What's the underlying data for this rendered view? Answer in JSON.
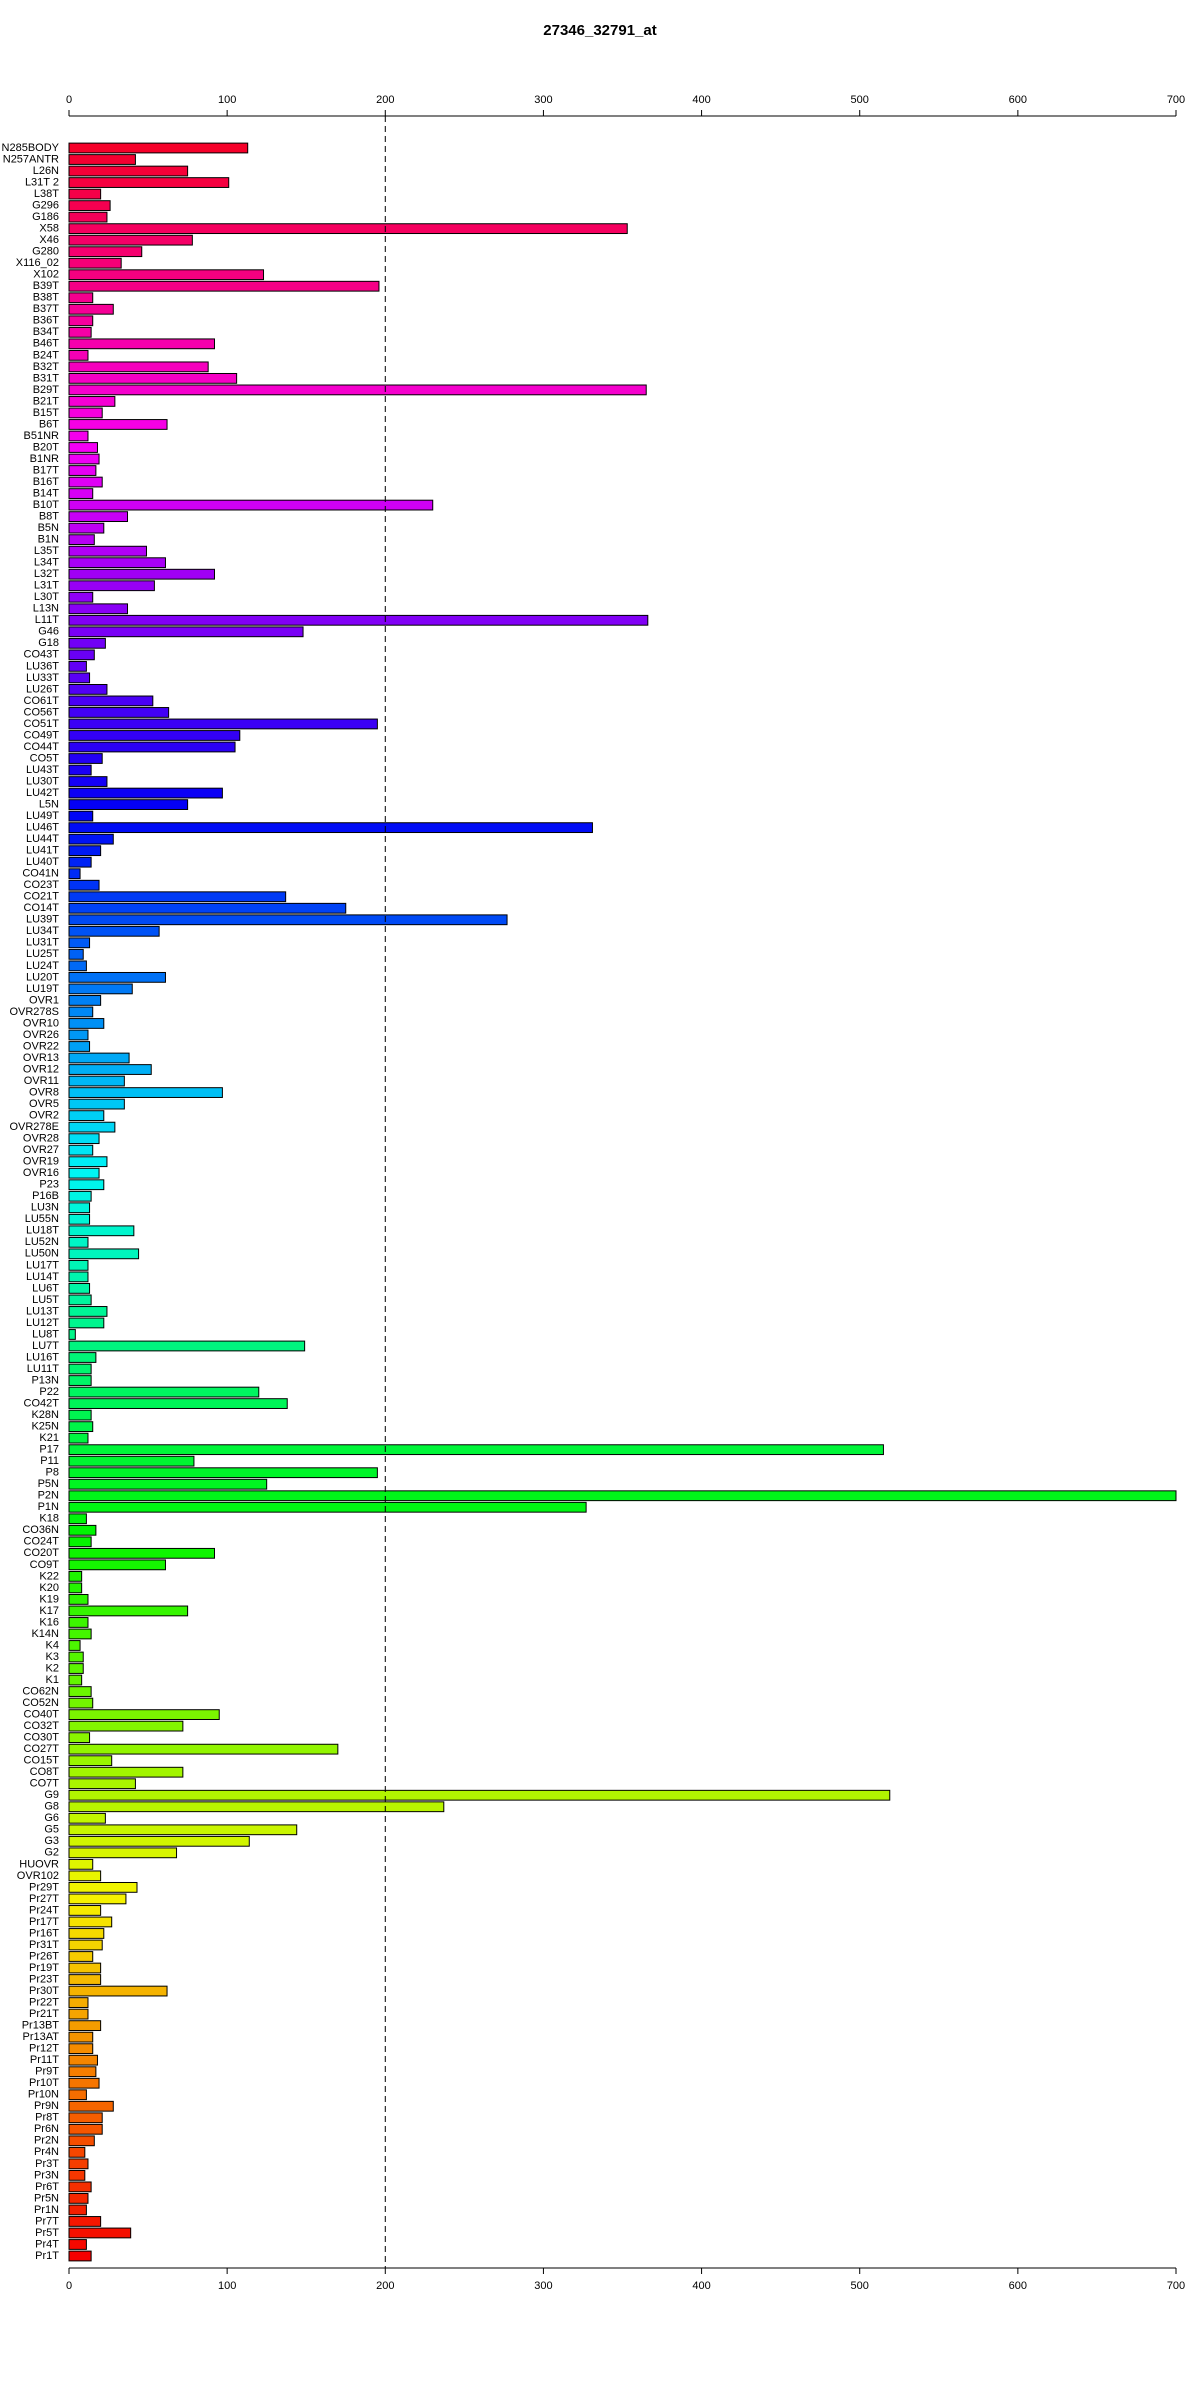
{
  "chart_data": {
    "type": "hbar",
    "title": "27346_32791_at",
    "categories": [
      "N285BODY",
      "N257ANTR",
      "L26N",
      "L31T 2",
      "L38T",
      "G296",
      "G186",
      "X58",
      "X46",
      "G280",
      "X116_02",
      "X102",
      "B39T",
      "B38T",
      "B37T",
      "B36T",
      "B34T",
      "B46T",
      "B24T",
      "B32T",
      "B31T",
      "B29T",
      "B21T",
      "B15T",
      "B6T",
      "B51NR",
      "B20T",
      "B1NR",
      "B17T",
      "B16T",
      "B14T",
      "B10T",
      "B8T",
      "B5N",
      "B1N",
      "L35T",
      "L34T",
      "L32T",
      "L31T",
      "L30T",
      "L13N",
      "L11T",
      "G46",
      "G18",
      "CO43T",
      "LU36T",
      "LU33T",
      "LU26T",
      "CO61T",
      "CO56T",
      "CO51T",
      "CO49T",
      "CO44T",
      "CO5T",
      "LU43T",
      "LU30T",
      "LU42T",
      "L5N",
      "LU49T",
      "LU46T",
      "LU44T",
      "LU41T",
      "LU40T",
      "CO41N",
      "CO23T",
      "CO21T",
      "CO14T",
      "LU39T",
      "LU34T",
      "LU31T",
      "LU25T",
      "LU24T",
      "LU20T",
      "LU19T",
      "OVR1",
      "OVR278S",
      "OVR10",
      "OVR26",
      "OVR22",
      "OVR13",
      "OVR12",
      "OVR11",
      "OVR8",
      "OVR5",
      "OVR2",
      "OVR278E",
      "OVR28",
      "OVR27",
      "OVR19",
      "OVR16",
      "P23",
      "P16B",
      "LU3N",
      "LU55N",
      "LU18T",
      "LU52N",
      "LU50N",
      "LU17T",
      "LU14T",
      "LU6T",
      "LU5T",
      "LU13T",
      "LU12T",
      "LU8T",
      "LU7T",
      "LU16T",
      "LU11T",
      "P13N",
      "P22",
      "CO42T",
      "K28N",
      "K25N",
      "K21",
      "P17",
      "P11",
      "P8",
      "P5N",
      "P2N",
      "P1N",
      "K18",
      "CO36N",
      "CO24T",
      "CO20T",
      "CO9T",
      "K22",
      "K20",
      "K19",
      "K17",
      "K16",
      "K14N",
      "K4",
      "K3",
      "K2",
      "K1",
      "CO62N",
      "CO52N",
      "CO40T",
      "CO32T",
      "CO30T",
      "CO27T",
      "CO15T",
      "CO8T",
      "CO7T",
      "G9",
      "G8",
      "G6",
      "G5",
      "G3",
      "G2",
      "HUOVR",
      "OVR102",
      "Pr29T",
      "Pr27T",
      "Pr24T",
      "Pr17T",
      "Pr16T",
      "Pr31T",
      "Pr26T",
      "Pr19T",
      "Pr23T",
      "Pr30T",
      "Pr22T",
      "Pr21T",
      "Pr13BT",
      "Pr13AT",
      "Pr12T",
      "Pr11T",
      "Pr9T",
      "Pr10T",
      "Pr10N",
      "Pr9N",
      "Pr8T",
      "Pr6N",
      "Pr2N",
      "Pr4N",
      "Pr3T",
      "Pr3N",
      "Pr6T",
      "Pr5N",
      "Pr1N",
      "Pr7T",
      "Pr5T",
      "Pr4T",
      "Pr1T"
    ],
    "values": [
      113,
      42,
      75,
      101,
      20,
      26,
      24,
      353,
      78,
      46,
      33,
      123,
      196,
      15,
      28,
      15,
      14,
      92,
      12,
      88,
      106,
      365,
      29,
      21,
      62,
      12,
      18,
      19,
      17,
      21,
      15,
      230,
      37,
      22,
      16,
      49,
      61,
      92,
      54,
      15,
      37,
      366,
      148,
      23,
      16,
      11,
      13,
      24,
      53,
      63,
      195,
      108,
      105,
      21,
      14,
      24,
      97,
      75,
      15,
      331,
      28,
      20,
      14,
      7,
      19,
      137,
      175,
      277,
      57,
      13,
      9,
      11,
      61,
      40,
      20,
      15,
      22,
      12,
      13,
      38,
      52,
      35,
      97,
      35,
      22,
      29,
      19,
      15,
      24,
      19,
      22,
      14,
      13,
      13,
      41,
      12,
      44,
      12,
      12,
      13,
      14,
      24,
      22,
      4,
      149,
      17,
      14,
      14,
      120,
      138,
      14,
      15,
      12,
      515,
      79,
      195,
      125,
      700,
      327,
      11,
      17,
      14,
      92,
      61,
      8,
      8,
      12,
      75,
      12,
      14,
      7,
      9,
      9,
      8,
      14,
      15,
      95,
      72,
      13,
      170,
      27,
      72,
      42,
      519,
      237,
      23,
      144,
      114,
      68,
      15,
      20,
      43,
      36,
      20,
      27,
      22,
      21,
      15,
      20,
      20,
      62,
      12,
      12,
      20,
      15,
      15,
      18,
      17,
      19,
      11,
      28,
      21,
      21,
      16,
      10,
      12,
      10,
      14,
      12,
      11,
      20,
      39,
      11,
      14
    ],
    "xlim": [
      0,
      700
    ],
    "xticks": [
      0,
      100,
      200,
      300,
      400,
      500,
      600,
      700
    ],
    "reference_line": 200
  }
}
